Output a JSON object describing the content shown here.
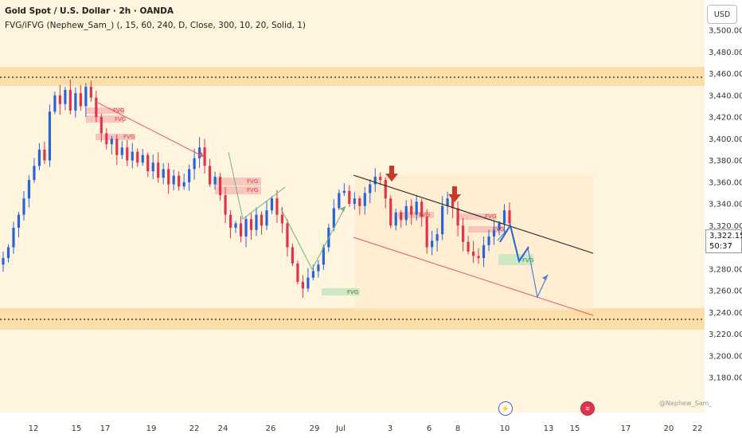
{
  "header": {
    "title": "Gold Spot / U.S. Dollar · 2h · OANDA",
    "indicator": "FVG/iFVG (Nephew_Sam_) (, 15, 60, 240, D, Close, 300, 10, 20, Solid, 1)",
    "currency": "USD"
  },
  "price_tag": {
    "price": "3,322.150",
    "countdown": "50:37"
  },
  "watermark": "@Nephew_Sam_",
  "colors": {
    "background": "#fff4de",
    "bull": "#2a63d8",
    "bear": "#e0344d",
    "zone": "#fcd9a0",
    "fvg_bear": "#f7b7b1",
    "fvg_bull": "#c7e8c1",
    "arrow": "#c8382c",
    "projection": "#4a7fdc"
  },
  "events": [
    "lightning-icon",
    "us-flag-icon"
  ],
  "chart_data": {
    "type": "candlestick",
    "title": "Gold Spot / U.S. Dollar · 2h · OANDA",
    "y_axis": {
      "ticks": [
        "3,500.000",
        "3,480.000",
        "3,460.000",
        "3,440.000",
        "3,420.000",
        "3,400.000",
        "3,380.000",
        "3,360.000",
        "3,340.000",
        "3,320.000",
        "3,300.000",
        "3,280.000",
        "3,260.000",
        "3,240.000",
        "3,220.000",
        "3,200.000",
        "3,180.000"
      ],
      "ylim": [
        3173,
        3513
      ]
    },
    "x_axis": {
      "ticks": [
        "12",
        "15",
        "17",
        "19",
        "22",
        "24",
        "26",
        "29",
        "Jul",
        "3",
        "6",
        "8",
        "10",
        "13",
        "15",
        "17",
        "20",
        "22"
      ]
    },
    "close_series": [
      3290,
      3300,
      3318,
      3330,
      3345,
      3362,
      3375,
      3390,
      3380,
      3425,
      3440,
      3432,
      3445,
      3426,
      3442,
      3430,
      3448,
      3438,
      3420,
      3405,
      3395,
      3400,
      3385,
      3392,
      3380,
      3388,
      3378,
      3385,
      3370,
      3378,
      3364,
      3372,
      3358,
      3366,
      3356,
      3360,
      3372,
      3382,
      3392,
      3375,
      3358,
      3365,
      3348,
      3330,
      3318,
      3322,
      3310,
      3326,
      3316,
      3330,
      3320,
      3334,
      3345,
      3330,
      3322,
      3300,
      3285,
      3268,
      3262,
      3272,
      3278,
      3284,
      3300,
      3318,
      3336,
      3350,
      3352,
      3340,
      3345,
      3338,
      3350,
      3358,
      3365,
      3362,
      3345,
      3320,
      3332,
      3325,
      3338,
      3330,
      3342,
      3328,
      3300,
      3306,
      3312,
      3338,
      3345,
      3336,
      3320,
      3305,
      3296,
      3292,
      3290,
      3302,
      3310,
      3316,
      3322,
      3334,
      3322
    ],
    "horizontal_levels": [
      3458,
      3250
    ],
    "zones": [
      {
        "low": 3452,
        "high": 3466
      },
      {
        "low": 3240,
        "high": 3260
      }
    ],
    "fvg_labels": [
      {
        "text": "FVG",
        "kind": "bearish",
        "price": 3438
      },
      {
        "text": "FVG",
        "kind": "bearish",
        "price": 3430
      },
      {
        "text": "FVG",
        "kind": "bearish",
        "price": 3409
      },
      {
        "text": "FVG",
        "kind": "bearish",
        "price": 3369
      },
      {
        "text": "FVG",
        "kind": "bearish",
        "price": 3362
      },
      {
        "text": "FVG",
        "kind": "bullish",
        "price": 3277
      },
      {
        "text": "FVG",
        "kind": "bearish",
        "price": 3342
      },
      {
        "text": "FVG",
        "kind": "bearish",
        "price": 3340
      },
      {
        "text": "FVG",
        "kind": "bearish",
        "price": 3329
      },
      {
        "text": "FVG",
        "kind": "bullish",
        "price": 3301
      }
    ],
    "price_label": 3322.15
  }
}
